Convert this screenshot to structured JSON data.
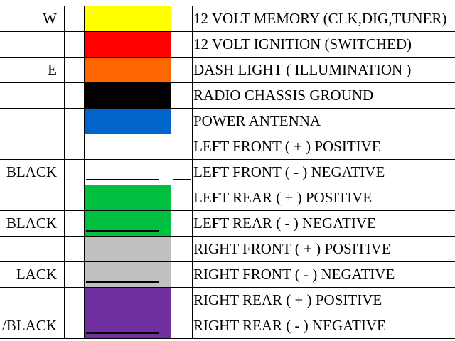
{
  "rows": [
    {
      "code": "W",
      "color": "#ffff00",
      "function": "12 VOLT MEMORY (CLK,DIG,TUNER)"
    },
    {
      "color": "#ff0000",
      "function": "12 VOLT IGNITION (SWITCHED)"
    },
    {
      "code": "E",
      "color": "#ff6600",
      "function": "DASH LIGHT ( ILLUMINATION )"
    },
    {
      "color": "#000000",
      "function": "RADIO CHASSIS GROUND"
    },
    {
      "color": "#0066cc",
      "function": "POWER ANTENNA"
    },
    {
      "color": "#ffffff",
      "function": "LEFT FRONT ( + ) POSITIVE"
    },
    {
      "code": "BLACK",
      "color": "#ffffff",
      "stripe": true,
      "function": "LEFT FRONT ( -  ) NEGATIVE"
    },
    {
      "color": "#00c040",
      "function": "LEFT REAR ( + ) POSITIVE"
    },
    {
      "code": "BLACK",
      "color": "#00c040",
      "stripe": true,
      "function": "LEFT REAR ( -  ) NEGATIVE"
    },
    {
      "color": "#c0c0c0",
      "function": "RIGHT FRONT ( + ) POSITIVE"
    },
    {
      "code": "LACK",
      "color": "#c0c0c0",
      "stripe": true,
      "function": "RIGHT FRONT ( -  ) NEGATIVE"
    },
    {
      "color": "#7030a0",
      "function": "RIGHT REAR ( + ) POSITIVE"
    },
    {
      "code": "/BLACK",
      "color": "#7030a0",
      "stripe": true,
      "function": "RIGHT REAR ( -  ) NEGATIVE"
    }
  ]
}
